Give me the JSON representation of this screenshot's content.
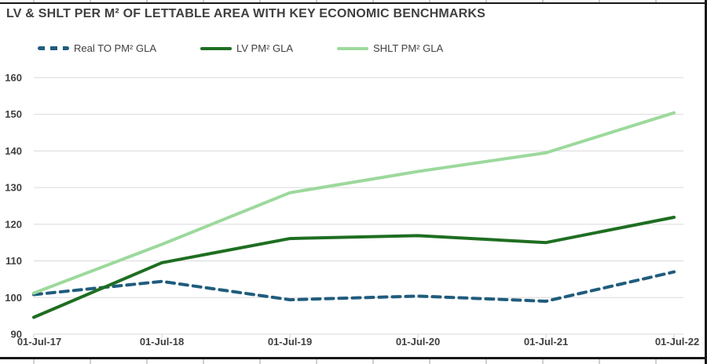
{
  "colors": {
    "title_text": "#404040",
    "axis_text": "#404040",
    "gridline": "#d9d9d9",
    "frame_border": "#161616",
    "real_to": "#1f5c7d",
    "lv": "#1e6e21",
    "shlt": "#9cd99c"
  },
  "chart_data": {
    "type": "line",
    "title": "LV & SHLT PER M² OF LETTABLE AREA WITH KEY ECONOMIC BENCHMARKS",
    "xlabel": "",
    "ylabel": "",
    "categories": [
      "01-Jul-17",
      "01-Jul-18",
      "01-Jul-19",
      "01-Jul-20",
      "01-Jul-21",
      "01-Jul-22"
    ],
    "y_ticks": [
      90,
      100,
      110,
      120,
      130,
      140,
      150,
      160
    ],
    "ylim": [
      90,
      160
    ],
    "grid": "horizontal",
    "legend_position": "top-left",
    "series": [
      {
        "id": "real-to",
        "name": "Real TO PM² GLA",
        "style": "dashed",
        "color": "#1f5c7d",
        "values": [
          100.8,
          104.4,
          99.4,
          100.4,
          99.0,
          107.0
        ]
      },
      {
        "id": "lv",
        "name": "LV PM² GLA",
        "style": "solid",
        "color": "#1e6e21",
        "values": [
          94.6,
          109.5,
          116.1,
          116.9,
          115.0,
          121.9
        ]
      },
      {
        "id": "shlt",
        "name": "SHLT PM² GLA",
        "style": "solid",
        "color": "#9cd99c",
        "values": [
          101.2,
          114.5,
          128.6,
          134.4,
          139.5,
          150.4
        ]
      }
    ]
  }
}
